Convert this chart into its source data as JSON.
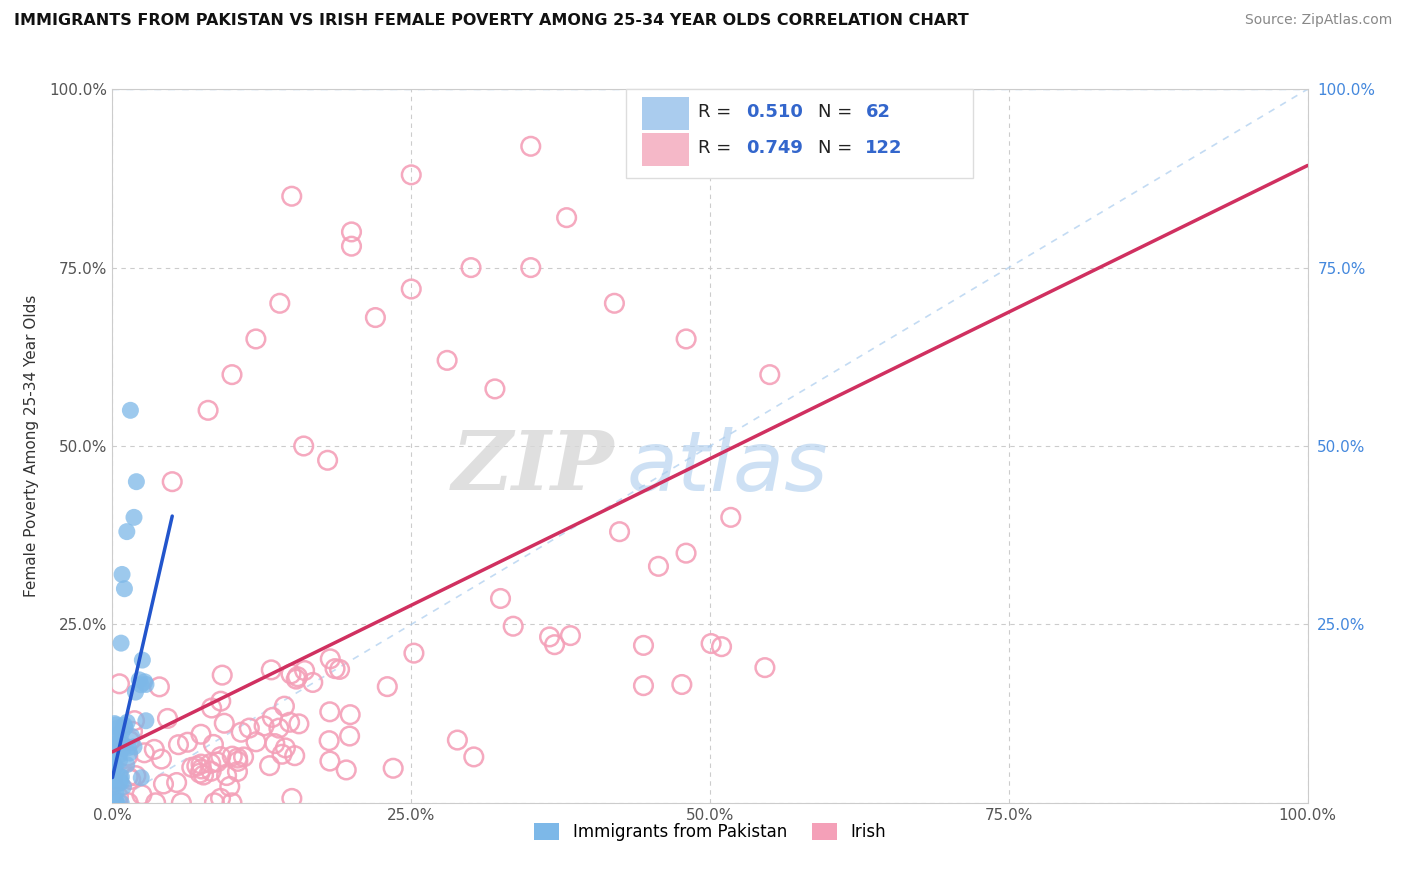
{
  "title": "IMMIGRANTS FROM PAKISTAN VS IRISH FEMALE POVERTY AMONG 25-34 YEAR OLDS CORRELATION CHART",
  "source": "Source: ZipAtlas.com",
  "ylabel": "Female Poverty Among 25-34 Year Olds",
  "xlim": [
    0,
    100
  ],
  "ylim": [
    0,
    100
  ],
  "xticklabels": [
    "0.0%",
    "25.0%",
    "50.0%",
    "75.0%",
    "100.0%"
  ],
  "yticklabels": [
    "",
    "25.0%",
    "50.0%",
    "75.0%",
    "100.0%"
  ],
  "pakistan_color": "#7db8e8",
  "irish_color": "#f4a0b8",
  "pakistan_R": 0.51,
  "pakistan_N": 62,
  "irish_R": 0.749,
  "irish_N": 122,
  "watermark_zip": "ZIP",
  "watermark_atlas": "atlas",
  "background_color": "#ffffff"
}
